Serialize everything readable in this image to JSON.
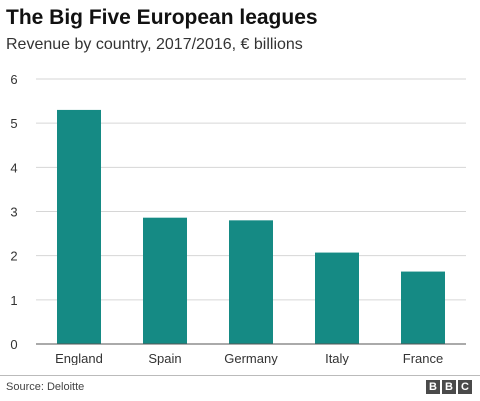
{
  "title": "The Big Five European leagues",
  "subtitle": "Revenue by country, 2017/2016, € billions",
  "source": "Source: Deloitte",
  "logo": [
    "B",
    "B",
    "C"
  ],
  "colors": {
    "bar": "#158a84",
    "grid": "#d6d6d6",
    "axis": "#555555",
    "text": "#333333"
  },
  "chart_data": {
    "type": "bar",
    "title": "The Big Five European leagues",
    "subtitle": "Revenue by country, 2017/2016, € billions",
    "categories": [
      "England",
      "Spain",
      "Germany",
      "Italy",
      "France"
    ],
    "values": [
      5.3,
      2.86,
      2.8,
      2.07,
      1.64
    ],
    "ylim": [
      0,
      6
    ],
    "yticks": [
      "0",
      "1",
      "2",
      "3",
      "4",
      "5",
      "6"
    ],
    "xlabel": "",
    "ylabel": "",
    "grid": true,
    "legend": false
  }
}
